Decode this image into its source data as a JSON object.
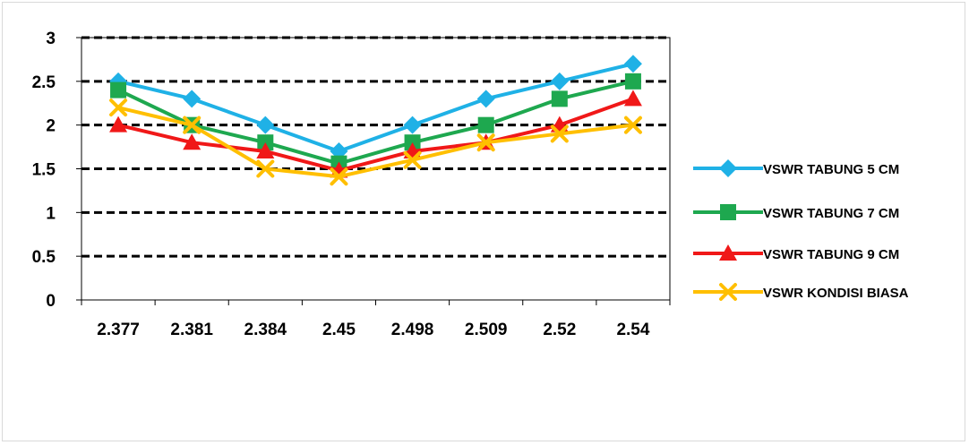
{
  "chart_data": {
    "type": "line",
    "categories": [
      "2.377",
      "2.381",
      "2.384",
      "2.45",
      "2.498",
      "2.509",
      "2.52",
      "2.54"
    ],
    "ylim": [
      0,
      3
    ],
    "yticks": [
      "0",
      "0.5",
      "1",
      "1.5",
      "2",
      "2.5",
      "3"
    ],
    "ytick_values": [
      0,
      0.5,
      1,
      1.5,
      2,
      2.5,
      3
    ],
    "grid": "dashed horizontal",
    "legend_position": "right",
    "series": [
      {
        "name": "VSWR TABUNG 5 CM",
        "color": "#1fb1e6",
        "marker": "diamond",
        "values": [
          2.5,
          2.3,
          2.0,
          1.7,
          2.0,
          2.3,
          2.5,
          2.7
        ]
      },
      {
        "name": "VSWR TABUNG 7 CM",
        "color": "#1ea84f",
        "marker": "square",
        "values": [
          2.4,
          2.0,
          1.8,
          1.56,
          1.8,
          2.0,
          2.3,
          2.5
        ]
      },
      {
        "name": "VSWR TABUNG 9 CM",
        "color": "#f01818",
        "marker": "triangle",
        "values": [
          2.0,
          1.8,
          1.7,
          1.48,
          1.7,
          1.8,
          2.0,
          2.3
        ]
      },
      {
        "name": "VSWR KONDISI BIASA",
        "color": "#ffbf00",
        "marker": "x",
        "values": [
          2.2,
          2.0,
          1.5,
          1.41,
          1.6,
          1.8,
          1.9,
          2.0
        ]
      }
    ]
  }
}
